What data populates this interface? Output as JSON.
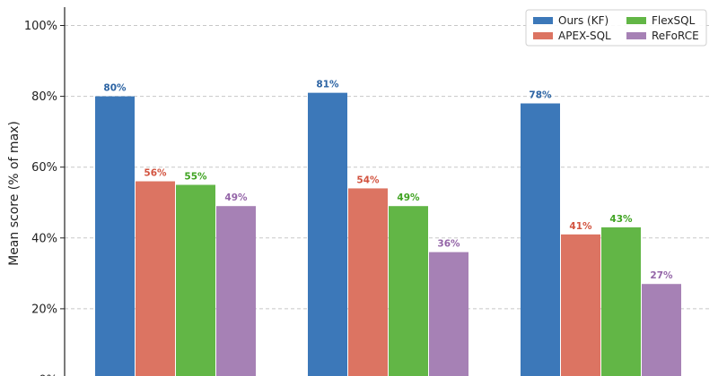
{
  "chart_data": {
    "type": "bar",
    "title": "",
    "xlabel": "",
    "ylabel": "Mean score (% of max)",
    "ylim": [
      0,
      105
    ],
    "yticks": [
      0,
      20,
      40,
      60,
      80,
      100
    ],
    "ytick_suffix": "%",
    "grid": "horizontal dashed",
    "legend_position": "top-right",
    "categories": [
      "",
      "",
      ""
    ],
    "series": [
      {
        "name": "Ours (KF)",
        "color": "#3c78b9",
        "values": [
          80,
          81,
          78
        ]
      },
      {
        "name": "APEX-SQL",
        "color": "#dc7462",
        "values": [
          56,
          54,
          41
        ]
      },
      {
        "name": "FlexSQL",
        "color": "#62b646",
        "values": [
          55,
          49,
          43
        ]
      },
      {
        "name": "ReFoRCE",
        "color": "#a681b5",
        "values": [
          49,
          36,
          27
        ]
      }
    ],
    "label_colors": [
      "#2b63a3",
      "#d2533f",
      "#3fa321",
      "#9465a8"
    ]
  }
}
